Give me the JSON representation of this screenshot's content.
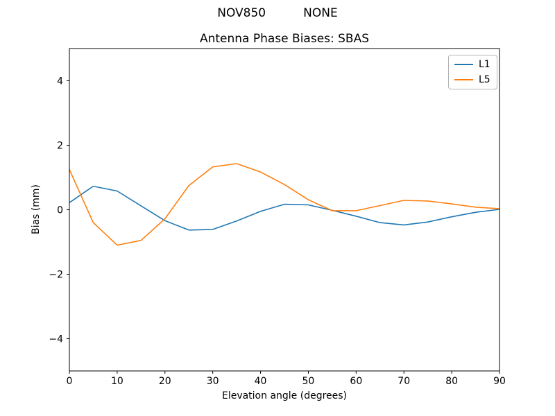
{
  "chart_data": {
    "type": "line",
    "suptitle": "NOV850          NONE",
    "title": "Antenna Phase Biases: SBAS",
    "xlabel": "Elevation angle (degrees)",
    "ylabel": "Bias (mm)",
    "xlim": [
      0,
      90
    ],
    "ylim": [
      -5,
      5
    ],
    "xticks": [
      0,
      10,
      20,
      30,
      40,
      50,
      60,
      70,
      80,
      90
    ],
    "yticks": [
      -4,
      -2,
      0,
      2,
      4
    ],
    "grid": false,
    "legend_position": "upper right",
    "x": [
      0,
      5,
      10,
      15,
      20,
      25,
      30,
      35,
      40,
      45,
      50,
      55,
      60,
      65,
      70,
      75,
      80,
      85,
      90
    ],
    "series": [
      {
        "name": "L1",
        "color": "#1f77b4",
        "values": [
          0.22,
          0.73,
          0.58,
          0.12,
          -0.34,
          -0.63,
          -0.61,
          -0.35,
          -0.05,
          0.17,
          0.15,
          -0.02,
          -0.2,
          -0.4,
          -0.47,
          -0.38,
          -0.22,
          -0.08,
          0.01
        ]
      },
      {
        "name": "L5",
        "color": "#ff7f0e",
        "values": [
          1.25,
          -0.4,
          -1.1,
          -0.95,
          -0.28,
          0.75,
          1.33,
          1.43,
          1.17,
          0.78,
          0.31,
          -0.03,
          -0.03,
          0.13,
          0.29,
          0.27,
          0.18,
          0.08,
          0.03
        ]
      }
    ]
  }
}
